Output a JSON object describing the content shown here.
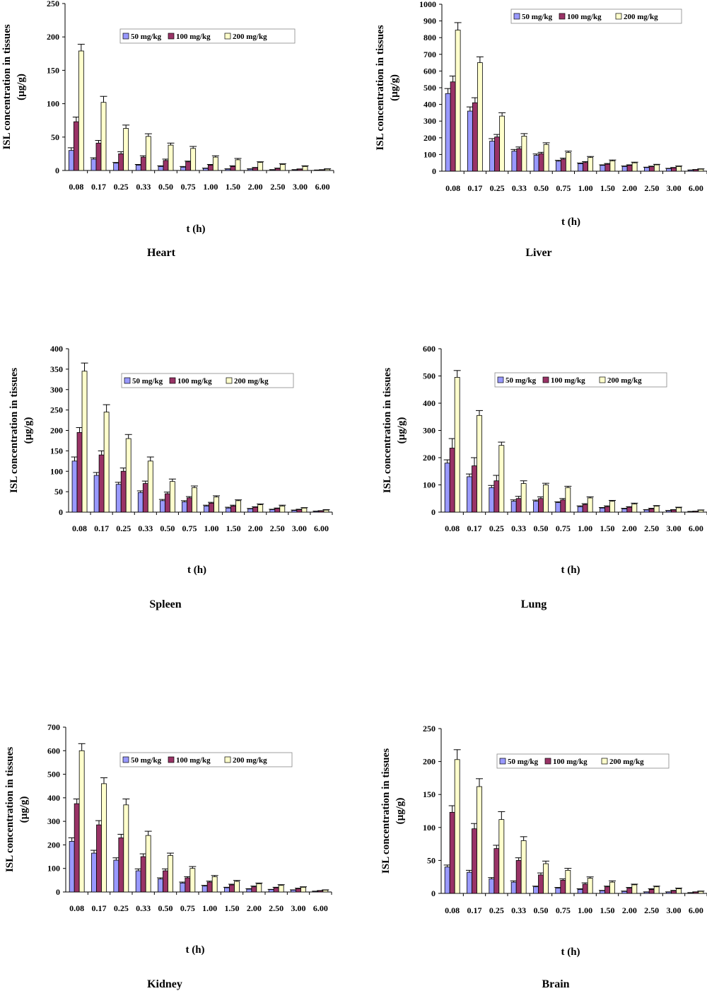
{
  "figure": {
    "legend_labels": [
      "50 mg/kg",
      "100 mg/kg",
      "200 mg/kg"
    ],
    "series_colors": [
      "#9999FF",
      "#993366",
      "#FFFFCC"
    ],
    "x_label": "t (h)",
    "y_label_line1": "ISL concentration in tissues",
    "y_label_line2": "(µg/g)"
  },
  "chart_data": [
    {
      "type": "bar",
      "title": "Heart",
      "categories": [
        "0.08",
        "0.17",
        "0.25",
        "0.33",
        "0.50",
        "0.75",
        "1.00",
        "1.50",
        "2.00",
        "2.50",
        "3.00",
        "6.00"
      ],
      "xlabel": "t (h)",
      "ylabel": "ISL concentration in tissues (µg/g)",
      "ylim": [
        0,
        250
      ],
      "yticks": [
        0,
        50,
        100,
        150,
        200,
        250
      ],
      "legend_position": "top-right",
      "grid": false,
      "series": [
        {
          "name": "50 mg/kg",
          "values": [
            30,
            17,
            11,
            8,
            6,
            5,
            3,
            2,
            2,
            1,
            1,
            0.5
          ],
          "errors": [
            4,
            2,
            1,
            1,
            1,
            1,
            0.5,
            0.5,
            0.5,
            0.3,
            0.3,
            0.2
          ]
        },
        {
          "name": "100 mg/kg",
          "values": [
            73,
            41,
            25,
            20,
            15,
            13,
            8,
            6,
            4,
            3,
            2,
            1
          ],
          "errors": [
            7,
            4,
            3,
            2,
            2,
            1,
            1,
            1,
            0.5,
            0.5,
            0.3,
            0.2
          ]
        },
        {
          "name": "200 mg/kg",
          "values": [
            179,
            102,
            63,
            51,
            38,
            33,
            20,
            16,
            12,
            9,
            6,
            2
          ],
          "errors": [
            10,
            9,
            5,
            4,
            3,
            3,
            2,
            2,
            1,
            1,
            1,
            0.5
          ]
        }
      ]
    },
    {
      "type": "bar",
      "title": "Liver",
      "categories": [
        "0.08",
        "0.17",
        "0.25",
        "0.33",
        "0.50",
        "0.75",
        "1.00",
        "1.50",
        "2.00",
        "2.50",
        "3.00",
        "6.00"
      ],
      "xlabel": "t (h)",
      "ylabel": "ISL concentration in tissues (µg/g)",
      "ylim": [
        0,
        1000
      ],
      "yticks": [
        0,
        100,
        200,
        300,
        400,
        500,
        600,
        700,
        800,
        900,
        1000
      ],
      "legend_position": "top-right",
      "grid": false,
      "series": [
        {
          "name": "50 mg/kg",
          "values": [
            465,
            360,
            180,
            120,
            95,
            60,
            45,
            35,
            28,
            22,
            15,
            6
          ],
          "errors": [
            30,
            25,
            15,
            10,
            8,
            5,
            4,
            3,
            3,
            2,
            2,
            1
          ]
        },
        {
          "name": "100 mg/kg",
          "values": [
            535,
            410,
            205,
            135,
            105,
            72,
            52,
            42,
            35,
            27,
            20,
            9
          ],
          "errors": [
            35,
            30,
            15,
            10,
            8,
            6,
            5,
            4,
            3,
            3,
            2,
            1
          ]
        },
        {
          "name": "200 mg/kg",
          "values": [
            845,
            650,
            330,
            210,
            160,
            112,
            82,
            62,
            50,
            38,
            28,
            12
          ],
          "errors": [
            45,
            35,
            20,
            15,
            10,
            8,
            6,
            5,
            4,
            3,
            3,
            2
          ]
        }
      ]
    },
    {
      "type": "bar",
      "title": "Spleen",
      "categories": [
        "0.08",
        "0.17",
        "0.25",
        "0.33",
        "0.50",
        "0.75",
        "1.00",
        "1.50",
        "2.00",
        "2.50",
        "3.00",
        "6.00"
      ],
      "xlabel": "t (h)",
      "ylabel": "ISL concentration in tissues (µg/g)",
      "ylim": [
        0,
        400
      ],
      "yticks": [
        0,
        50,
        100,
        150,
        200,
        250,
        300,
        350,
        400
      ],
      "legend_position": "top-right",
      "grid": false,
      "series": [
        {
          "name": "50 mg/kg",
          "values": [
            125,
            90,
            68,
            48,
            28,
            25,
            15,
            10,
            8,
            6,
            4,
            2
          ],
          "errors": [
            10,
            7,
            5,
            4,
            3,
            3,
            2,
            2,
            1,
            1,
            1,
            0.5
          ]
        },
        {
          "name": "100 mg/kg",
          "values": [
            195,
            140,
            100,
            70,
            45,
            35,
            22,
            15,
            12,
            9,
            6,
            3
          ],
          "errors": [
            12,
            10,
            8,
            6,
            4,
            3,
            2,
            2,
            1,
            1,
            1,
            0.5
          ]
        },
        {
          "name": "200 mg/kg",
          "values": [
            345,
            245,
            180,
            125,
            75,
            60,
            37,
            28,
            18,
            15,
            10,
            5
          ],
          "errors": [
            20,
            18,
            10,
            10,
            6,
            4,
            3,
            2,
            2,
            2,
            1,
            1
          ]
        }
      ]
    },
    {
      "type": "bar",
      "title": "Lung",
      "categories": [
        "0.08",
        "0.17",
        "0.25",
        "0.33",
        "0.50",
        "0.75",
        "1.00",
        "1.50",
        "2.00",
        "2.50",
        "3.00",
        "6.00"
      ],
      "xlabel": "t (h)",
      "ylabel": "ISL concentration in tissues (µg/g)",
      "ylim": [
        0,
        600
      ],
      "yticks": [
        0,
        100,
        200,
        300,
        400,
        500,
        600
      ],
      "legend_position": "top-right",
      "grid": false,
      "series": [
        {
          "name": "50 mg/kg",
          "values": [
            180,
            130,
            90,
            40,
            40,
            35,
            20,
            15,
            12,
            8,
            5,
            2
          ],
          "errors": [
            12,
            10,
            8,
            5,
            4,
            3,
            3,
            2,
            2,
            1,
            1,
            0.5
          ]
        },
        {
          "name": "100 mg/kg",
          "values": [
            235,
            170,
            115,
            50,
            50,
            45,
            28,
            20,
            18,
            12,
            8,
            3
          ],
          "errors": [
            35,
            30,
            20,
            8,
            6,
            5,
            3,
            3,
            2,
            2,
            1,
            0.5
          ]
        },
        {
          "name": "200 mg/kg",
          "values": [
            495,
            355,
            245,
            105,
            100,
            90,
            52,
            40,
            30,
            22,
            16,
            7
          ],
          "errors": [
            25,
            18,
            12,
            10,
            6,
            5,
            4,
            3,
            3,
            2,
            2,
            1
          ]
        }
      ]
    },
    {
      "type": "bar",
      "title": "Kidney",
      "categories": [
        "0.08",
        "0.17",
        "0.25",
        "0.33",
        "0.50",
        "0.75",
        "1.00",
        "1.50",
        "2.00",
        "2.50",
        "3.00",
        "6.00"
      ],
      "xlabel": "t (h)",
      "ylabel": "ISL concentration in tissues (µg/g)",
      "ylim": [
        0,
        700
      ],
      "yticks": [
        0,
        100,
        200,
        300,
        400,
        500,
        600,
        700
      ],
      "legend_position": "top-right",
      "grid": false,
      "series": [
        {
          "name": "50 mg/kg",
          "values": [
            215,
            165,
            135,
            90,
            55,
            38,
            25,
            18,
            12,
            10,
            8,
            3
          ],
          "errors": [
            15,
            12,
            10,
            8,
            5,
            4,
            3,
            2,
            2,
            1,
            1,
            0.5
          ]
        },
        {
          "name": "100 mg/kg",
          "values": [
            375,
            285,
            230,
            150,
            90,
            60,
            42,
            30,
            22,
            18,
            14,
            5
          ],
          "errors": [
            20,
            18,
            15,
            12,
            8,
            5,
            4,
            3,
            3,
            2,
            2,
            1
          ]
        },
        {
          "name": "200 mg/kg",
          "values": [
            600,
            460,
            370,
            240,
            155,
            100,
            65,
            45,
            35,
            28,
            20,
            8
          ],
          "errors": [
            30,
            25,
            25,
            18,
            10,
            8,
            5,
            4,
            3,
            3,
            2,
            1
          ]
        }
      ]
    },
    {
      "type": "bar",
      "title": "Brain",
      "categories": [
        "0.08",
        "0.17",
        "0.25",
        "0.33",
        "0.50",
        "0.75",
        "1.00",
        "1.50",
        "2.00",
        "2.50",
        "3.00",
        "6.00"
      ],
      "xlabel": "t (h)",
      "ylabel": "ISL concentration in tissues (µg/g)",
      "ylim": [
        0,
        250
      ],
      "yticks": [
        0,
        50,
        100,
        150,
        200,
        250
      ],
      "legend_position": "top-right",
      "grid": false,
      "series": [
        {
          "name": "50 mg/kg",
          "values": [
            40,
            32,
            22,
            17,
            10,
            8,
            6,
            4,
            3,
            2,
            2,
            1
          ],
          "errors": [
            3,
            3,
            2,
            2,
            1,
            1,
            1,
            0.5,
            0.5,
            0.3,
            0.3,
            0.2
          ]
        },
        {
          "name": "100 mg/kg",
          "values": [
            123,
            98,
            68,
            50,
            28,
            20,
            14,
            10,
            8,
            6,
            4,
            2
          ],
          "errors": [
            10,
            8,
            5,
            4,
            3,
            2,
            2,
            1,
            1,
            1,
            0.5,
            0.3
          ]
        },
        {
          "name": "200 mg/kg",
          "values": [
            203,
            162,
            112,
            80,
            45,
            35,
            23,
            17,
            13,
            10,
            7,
            3
          ],
          "errors": [
            15,
            12,
            12,
            6,
            4,
            3,
            2,
            2,
            1,
            1,
            1,
            0.5
          ]
        }
      ]
    }
  ]
}
